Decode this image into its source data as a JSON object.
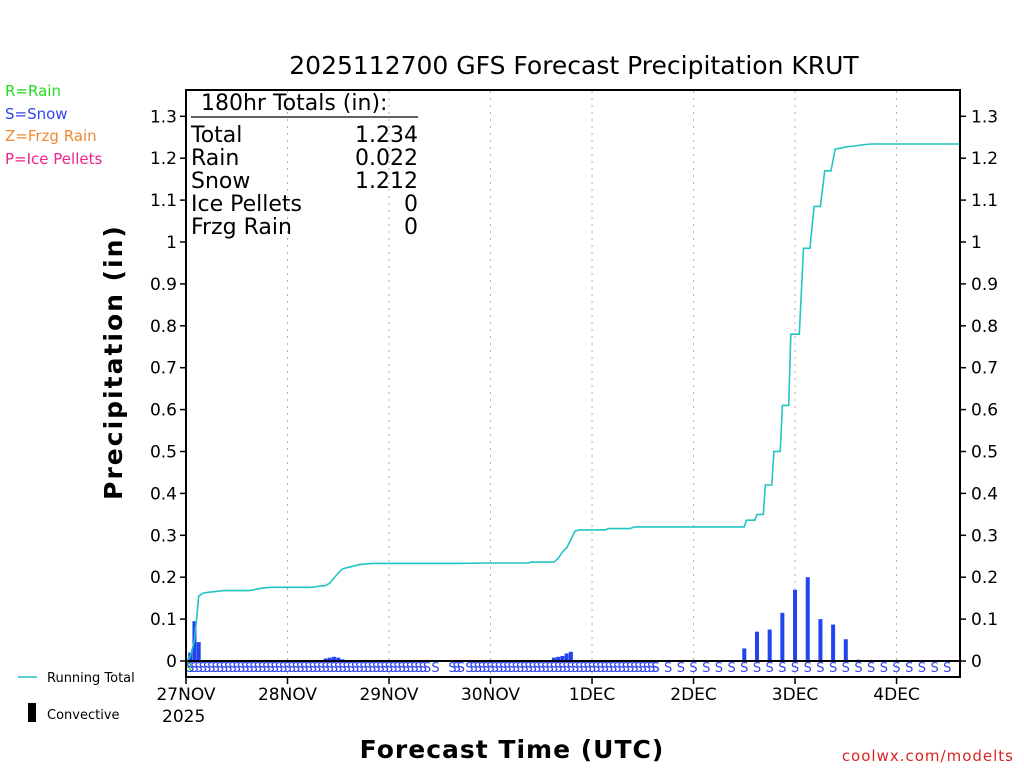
{
  "chart_data": {
    "type": "bar+line",
    "title": "2025112700 GFS Forecast Precipitation KRUT",
    "xlabel": "Forecast Time (UTC)",
    "ylabel": "Precipitation (in)",
    "ylim": [
      0,
      1.35
    ],
    "xlim_hours": [
      0,
      183
    ],
    "y_ticks": [
      "0",
      "0.1",
      "0.2",
      "0.3",
      "0.4",
      "0.5",
      "0.6",
      "0.7",
      "0.8",
      "0.9",
      "1",
      "1.1",
      "1.2",
      "1.3"
    ],
    "x_ticks": [
      {
        "hour": 0,
        "label": "27NOV"
      },
      {
        "hour": 24,
        "label": "28NOV"
      },
      {
        "hour": 48,
        "label": "29NOV"
      },
      {
        "hour": 72,
        "label": "30NOV"
      },
      {
        "hour": 96,
        "label": "1DEC"
      },
      {
        "hour": 120,
        "label": "2DEC"
      },
      {
        "hour": 144,
        "label": "3DEC"
      },
      {
        "hour": 168,
        "label": "4DEC"
      }
    ],
    "year_label": "2025",
    "type_legend": [
      "R=Rain",
      "S=Snow",
      "Z=Frzg Rain",
      "P=Ice Pellets"
    ],
    "series_legend": {
      "running_total": "Running Total",
      "convective": "Convective"
    },
    "totals": {
      "header": "180hr Totals (in):",
      "rows": [
        {
          "label": "Total",
          "value": "1.234"
        },
        {
          "label": "Rain",
          "value": "0.022"
        },
        {
          "label": "Snow",
          "value": "1.212"
        },
        {
          "label": "Ice Pellets",
          "value": "0"
        },
        {
          "label": "Frzg Rain",
          "value": "0"
        }
      ]
    },
    "running_total": [
      [
        0,
        0
      ],
      [
        1,
        0.01
      ],
      [
        2,
        0.05
      ],
      [
        2.5,
        0.1
      ],
      [
        3,
        0.155
      ],
      [
        4,
        0.162
      ],
      [
        6,
        0.165
      ],
      [
        9,
        0.168
      ],
      [
        15,
        0.168
      ],
      [
        16,
        0.17
      ],
      [
        18,
        0.174
      ],
      [
        20,
        0.176
      ],
      [
        30,
        0.176
      ],
      [
        31,
        0.178
      ],
      [
        33,
        0.18
      ],
      [
        34,
        0.186
      ],
      [
        35,
        0.198
      ],
      [
        36,
        0.21
      ],
      [
        37,
        0.22
      ],
      [
        39,
        0.225
      ],
      [
        41,
        0.23
      ],
      [
        44,
        0.233
      ],
      [
        63,
        0.233
      ],
      [
        72,
        0.234
      ],
      [
        78,
        0.234
      ],
      [
        81,
        0.234
      ],
      [
        81.5,
        0.236
      ],
      [
        87,
        0.236
      ],
      [
        88,
        0.245
      ],
      [
        89,
        0.26
      ],
      [
        90,
        0.27
      ],
      [
        91,
        0.29
      ],
      [
        92,
        0.31
      ],
      [
        93,
        0.313
      ],
      [
        96,
        0.313
      ],
      [
        99,
        0.313
      ],
      [
        100,
        0.316
      ],
      [
        105,
        0.316
      ],
      [
        106,
        0.32
      ],
      [
        132,
        0.32
      ],
      [
        132.5,
        0.336
      ],
      [
        134.5,
        0.336
      ],
      [
        135,
        0.35
      ],
      [
        136.5,
        0.35
      ],
      [
        137,
        0.42
      ],
      [
        138.5,
        0.42
      ],
      [
        139,
        0.5
      ],
      [
        140.5,
        0.5
      ],
      [
        141,
        0.61
      ],
      [
        142.5,
        0.61
      ],
      [
        143,
        0.78
      ],
      [
        145,
        0.78
      ],
      [
        146,
        0.985
      ],
      [
        147.5,
        0.985
      ],
      [
        148.5,
        1.085
      ],
      [
        150,
        1.085
      ],
      [
        151,
        1.17
      ],
      [
        152.5,
        1.17
      ],
      [
        153.5,
        1.222
      ],
      [
        155,
        1.224
      ],
      [
        156,
        1.227
      ],
      [
        158,
        1.229
      ],
      [
        160,
        1.232
      ],
      [
        162,
        1.234
      ],
      [
        183,
        1.234
      ]
    ],
    "bars": [
      {
        "hour": 1,
        "value": 0.02
      },
      {
        "hour": 2,
        "value": 0.095
      },
      {
        "hour": 3,
        "value": 0.045
      },
      {
        "hour": 33,
        "value": 0.006
      },
      {
        "hour": 34,
        "value": 0.008
      },
      {
        "hour": 35,
        "value": 0.01
      },
      {
        "hour": 36,
        "value": 0.008
      },
      {
        "hour": 37,
        "value": 0.004
      },
      {
        "hour": 87,
        "value": 0.008
      },
      {
        "hour": 88,
        "value": 0.01
      },
      {
        "hour": 89,
        "value": 0.012
      },
      {
        "hour": 90,
        "value": 0.018
      },
      {
        "hour": 91,
        "value": 0.022
      },
      {
        "hour": 132,
        "value": 0.03
      },
      {
        "hour": 135,
        "value": 0.07
      },
      {
        "hour": 138,
        "value": 0.075
      },
      {
        "hour": 141,
        "value": 0.115
      },
      {
        "hour": 144,
        "value": 0.17
      },
      {
        "hour": 147,
        "value": 0.2
      },
      {
        "hour": 150,
        "value": 0.1
      },
      {
        "hour": 153,
        "value": 0.087
      },
      {
        "hour": 156,
        "value": 0.052
      },
      {
        "hour": 159,
        "value": 0.003
      }
    ],
    "precip_types": [
      {
        "hour": 0.5,
        "type": "R"
      },
      {
        "from": 1,
        "to": 57,
        "step": 1,
        "type": "S"
      },
      {
        "hour": 59,
        "type": "S"
      },
      {
        "from": 63,
        "to": 65,
        "step": 1,
        "type": "S"
      },
      {
        "from": 67,
        "to": 111,
        "step": 1,
        "type": "S"
      },
      {
        "from": 111,
        "to": 182,
        "step": 3,
        "type": "S"
      }
    ],
    "watermark": "coolwx.com/modelts"
  },
  "colors": {
    "running_total": "#22c4c4",
    "bars": "#2244ee",
    "rain": "#22dd22",
    "snow": "#3344ee",
    "frzg": "#ee8833",
    "ice": "#ee2288",
    "watermark": "#dd2222",
    "grid": "#b0b0b0"
  }
}
